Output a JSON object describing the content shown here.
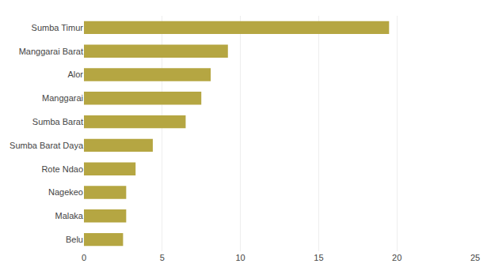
{
  "chart_data": {
    "type": "bar",
    "orientation": "horizontal",
    "categories": [
      "Belu",
      "Malaka",
      "Nagekeo",
      "Rote Ndao",
      "Sumba Barat Daya",
      "Sumba Barat",
      "Manggarai",
      "Alor",
      "Manggarai Barat",
      "Sumba Timur"
    ],
    "values": [
      2.5,
      2.7,
      2.7,
      3.3,
      4.4,
      6.5,
      7.5,
      8.1,
      9.2,
      19.5
    ],
    "color": "#b5a642",
    "xlim": [
      0,
      25
    ],
    "xticks": [
      0,
      5,
      10,
      15,
      20,
      25
    ],
    "grid": true
  }
}
